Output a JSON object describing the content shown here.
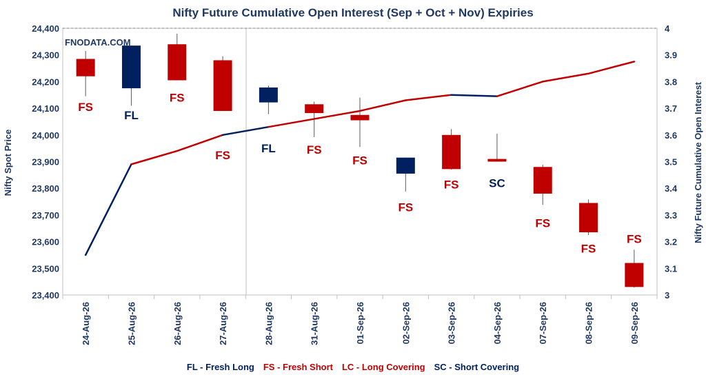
{
  "chart_data": {
    "type": "candlestick-with-line",
    "title": "Nifty Future Cumulative Open Interest (Sep + Oct + Nov) Expiries",
    "watermark": "FNODATA.COM",
    "ylabel_left": "Nifty Spot Price",
    "ylabel_right": "Nifty Future Cumulative Open Interest",
    "ylim_left": [
      23400,
      24400
    ],
    "ylim_right": [
      3,
      4
    ],
    "yticks_left": [
      "23,400",
      "23,500",
      "23,600",
      "23,700",
      "23,800",
      "23,900",
      "24,000",
      "24,100",
      "24,200",
      "24,300",
      "24,400"
    ],
    "yticks_right": [
      "3",
      "3.1",
      "3.2",
      "3.3",
      "3.4",
      "3.5",
      "3.6",
      "3.7",
      "3.8",
      "3.9",
      "4"
    ],
    "categories": [
      "24-Aug-26",
      "25-Aug-26",
      "26-Aug-26",
      "27-Aug-26",
      "28-Aug-26",
      "31-Aug-26",
      "01-Sep-26",
      "02-Sep-26",
      "03-Sep-26",
      "04-Sep-26",
      "07-Sep-26",
      "08-Sep-26",
      "09-Sep-26"
    ],
    "candles": [
      {
        "open": 24220,
        "high": 24315,
        "low": 24145,
        "close": 24285,
        "color": "#c00000"
      },
      {
        "open": 24175,
        "high": 24335,
        "low": 24110,
        "close": 24335,
        "color": "#002060"
      },
      {
        "open": 24340,
        "high": 24380,
        "low": 24205,
        "close": 24205,
        "color": "#c00000"
      },
      {
        "open": 24280,
        "high": 24295,
        "low": 24090,
        "close": 24090,
        "color": "#c00000"
      },
      {
        "open": 24122,
        "high": 24185,
        "low": 24078,
        "close": 24178,
        "color": "#002060"
      },
      {
        "open": 24115,
        "high": 24125,
        "low": 23992,
        "close": 24082,
        "color": "#c00000"
      },
      {
        "open": 24075,
        "high": 24140,
        "low": 23955,
        "close": 24055,
        "color": "#c00000"
      },
      {
        "open": 23855,
        "high": 23915,
        "low": 23788,
        "close": 23915,
        "color": "#002060"
      },
      {
        "open": 24000,
        "high": 24022,
        "low": 23870,
        "close": 23872,
        "color": "#c00000"
      },
      {
        "open": 23910,
        "high": 24005,
        "low": 23900,
        "close": 23900,
        "color": "#c00000"
      },
      {
        "open": 23880,
        "high": 23888,
        "low": 23738,
        "close": 23780,
        "color": "#c00000"
      },
      {
        "open": 23745,
        "high": 23758,
        "low": 23625,
        "close": 23635,
        "color": "#c00000"
      },
      {
        "open": 23520,
        "high": 23570,
        "low": 23428,
        "close": 23430,
        "color": "#c00000"
      }
    ],
    "oi_series": {
      "name": "Nifty Future Cumulative Open Interest",
      "values": [
        3.15,
        3.49,
        3.54,
        3.6,
        3.63,
        3.66,
        3.69,
        3.73,
        3.75,
        3.745,
        3.8,
        3.83,
        3.875
      ]
    },
    "annotations": [
      {
        "label": "FS",
        "value": 24105,
        "color": "#c00000"
      },
      {
        "label": "FL",
        "value": 24075,
        "color": "#002060"
      },
      {
        "label": "FS",
        "value": 24140,
        "color": "#c00000"
      },
      {
        "label": "FS",
        "value": 23925,
        "color": "#c00000"
      },
      {
        "label": "FL",
        "value": 23950,
        "color": "#002060"
      },
      {
        "label": "FS",
        "value": 23945,
        "color": "#c00000"
      },
      {
        "label": "FS",
        "value": 23905,
        "color": "#c00000"
      },
      {
        "label": "FS",
        "value": 23730,
        "color": "#c00000"
      },
      {
        "label": "FS",
        "value": 23815,
        "color": "#c00000"
      },
      {
        "label": "SC",
        "value": 23820,
        "color": "#002060"
      },
      {
        "label": "FS",
        "value": 23670,
        "color": "#c00000"
      },
      {
        "label": "FS",
        "value": 23575,
        "color": "#c00000"
      },
      {
        "label": "FS",
        "value": 23610,
        "color": "#c00000"
      }
    ],
    "legend": [
      {
        "text": "FL - Fresh Long",
        "color": "#002060"
      },
      {
        "text": "FS - Fresh Short",
        "color": "#c00000"
      },
      {
        "text": "LC - Long Covering",
        "color": "#c00000"
      },
      {
        "text": "SC - Short Covering",
        "color": "#002060"
      }
    ],
    "legend_position": "bottom"
  }
}
